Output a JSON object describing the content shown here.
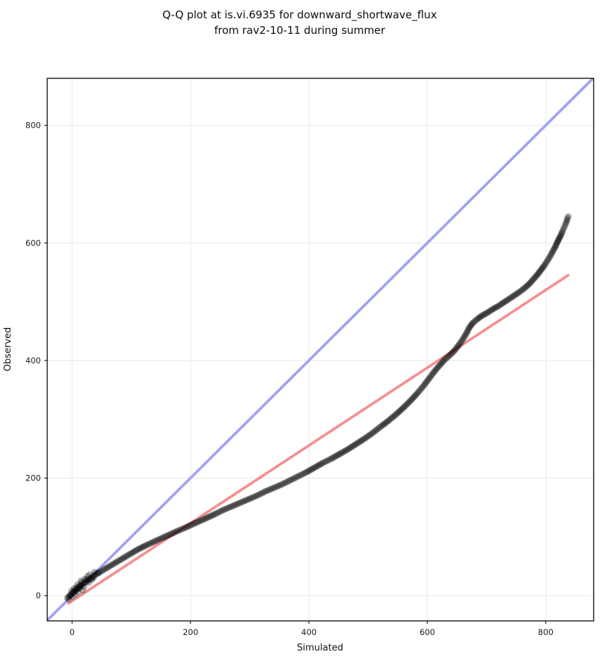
{
  "figure": {
    "title_line1": "Q-Q plot at is.vi.6935 for downward_shortwave_flux",
    "title_line2": "from rav2-10-11 during summer"
  },
  "chart_data": {
    "type": "scatter",
    "title": "Q-Q plot at is.vi.6935 for downward_shortwave_flux from rav2-10-11 during summer",
    "xlabel": "Simulated",
    "ylabel": "Observed",
    "xlim": [
      -42,
      881
    ],
    "ylim": [
      -43,
      880
    ],
    "xticks": [
      0,
      200,
      400,
      600,
      800
    ],
    "yticks": [
      0,
      200,
      400,
      600,
      800
    ],
    "grid": true,
    "grid_color": "#eaeaea",
    "spine_color": "#000000",
    "identity_line": {
      "label": "identity 1:1 line",
      "color": "#a2a2f2",
      "width": 3.8,
      "from": [
        -43,
        -43
      ],
      "to": [
        881,
        881
      ]
    },
    "fit_line": {
      "label": "linear fit line",
      "color": "#f59090",
      "width": 3.8,
      "from": [
        -6,
        -13
      ],
      "to": [
        838,
        545
      ]
    },
    "points_color": "#000000",
    "points_alpha": 0.3,
    "point_radius": 4.7,
    "dot_spacing": 3.2,
    "sparse_from_x": 826,
    "sparse_spacing": 6,
    "quantile_points": [
      [
        -8,
        -4
      ],
      [
        0,
        4
      ],
      [
        8,
        11
      ],
      [
        16,
        18
      ],
      [
        24,
        24
      ],
      [
        32,
        30
      ],
      [
        40,
        36
      ],
      [
        50,
        42
      ],
      [
        60,
        48
      ],
      [
        70,
        54
      ],
      [
        80,
        60
      ],
      [
        90,
        66
      ],
      [
        100,
        72
      ],
      [
        112,
        79
      ],
      [
        124,
        85
      ],
      [
        137,
        91
      ],
      [
        150,
        97
      ],
      [
        163,
        103
      ],
      [
        176,
        109
      ],
      [
        190,
        115
      ],
      [
        203,
        121
      ],
      [
        216,
        127
      ],
      [
        229,
        133
      ],
      [
        242,
        139
      ],
      [
        256,
        146
      ],
      [
        270,
        152
      ],
      [
        284,
        158
      ],
      [
        298,
        164
      ],
      [
        312,
        170
      ],
      [
        326,
        177
      ],
      [
        340,
        183
      ],
      [
        354,
        189
      ],
      [
        368,
        196
      ],
      [
        382,
        203
      ],
      [
        396,
        210
      ],
      [
        410,
        218
      ],
      [
        424,
        226
      ],
      [
        438,
        233
      ],
      [
        452,
        241
      ],
      [
        466,
        249
      ],
      [
        480,
        258
      ],
      [
        494,
        267
      ],
      [
        508,
        277
      ],
      [
        522,
        288
      ],
      [
        535,
        298
      ],
      [
        548,
        309
      ],
      [
        560,
        320
      ],
      [
        572,
        332
      ],
      [
        583,
        344
      ],
      [
        593,
        356
      ],
      [
        602,
        368
      ],
      [
        611,
        380
      ],
      [
        620,
        391
      ],
      [
        629,
        401
      ],
      [
        638,
        409
      ],
      [
        646,
        417
      ],
      [
        653,
        426
      ],
      [
        660,
        436
      ],
      [
        666,
        446
      ],
      [
        671,
        456
      ],
      [
        677,
        464
      ],
      [
        684,
        470
      ],
      [
        692,
        476
      ],
      [
        701,
        481
      ],
      [
        710,
        487
      ],
      [
        719,
        492
      ],
      [
        728,
        498
      ],
      [
        737,
        504
      ],
      [
        746,
        510
      ],
      [
        755,
        516
      ],
      [
        764,
        523
      ],
      [
        772,
        530
      ],
      [
        779,
        538
      ],
      [
        786,
        546
      ],
      [
        792,
        554
      ],
      [
        798,
        562
      ],
      [
        803,
        570
      ],
      [
        808,
        578
      ],
      [
        812,
        586
      ],
      [
        816,
        593
      ],
      [
        819,
        600
      ],
      [
        822,
        606
      ],
      [
        825,
        612
      ],
      [
        828,
        619
      ],
      [
        831,
        626
      ],
      [
        834,
        633
      ],
      [
        836,
        639
      ],
      [
        838,
        645
      ]
    ],
    "start_cluster": [
      [
        -6,
        -6
      ],
      [
        -3,
        0
      ],
      [
        0,
        -2
      ],
      [
        2,
        6
      ],
      [
        5,
        2
      ],
      [
        7,
        14
      ],
      [
        10,
        6
      ],
      [
        13,
        17
      ],
      [
        3,
        12
      ],
      [
        -1,
        8
      ],
      [
        6,
        9
      ],
      [
        12,
        12
      ],
      [
        16,
        22
      ],
      [
        20,
        15
      ],
      [
        24,
        28
      ],
      [
        28,
        22
      ],
      [
        33,
        27
      ],
      [
        18,
        9
      ],
      [
        26,
        33
      ],
      [
        36,
        30
      ],
      [
        9,
        19
      ],
      [
        15,
        25
      ],
      [
        30,
        36
      ],
      [
        38,
        40
      ],
      [
        44,
        38
      ],
      [
        21,
        28
      ]
    ]
  },
  "colors": {
    "background": "#ffffff",
    "grid": "#eaeaea",
    "identity_line": "#a2a2f2",
    "fit_line": "#f59090",
    "points": "#000000"
  }
}
